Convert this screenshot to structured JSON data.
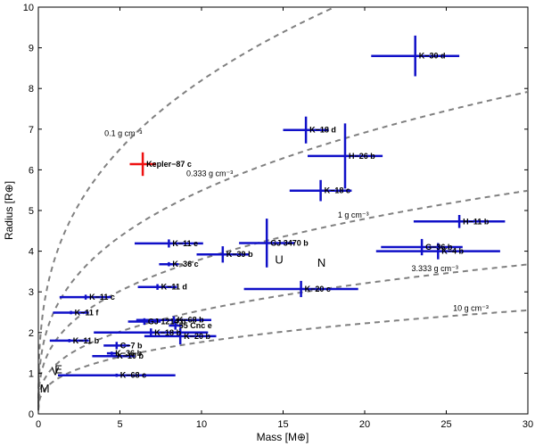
{
  "chart_data": {
    "type": "scatter",
    "subtype": "errorbar",
    "title": "",
    "xlabel": "Mass [M⊕]",
    "ylabel": "Radius [R⊕]",
    "xlim": [
      0,
      30
    ],
    "ylim": [
      0,
      10
    ],
    "xticks": [
      "0",
      "5",
      "10",
      "15",
      "20",
      "25",
      "30"
    ],
    "yticks": [
      "0",
      "1",
      "2",
      "3",
      "4",
      "5",
      "6",
      "7",
      "8",
      "9",
      "10"
    ],
    "grid": false,
    "colors": {
      "planet": "#1010c8",
      "highlight": "#ee1111",
      "curve": "#808080"
    },
    "density_curves": [
      {
        "label": "0.1 g cm⁻³",
        "density": 0.1
      },
      {
        "label": "0.333 g cm⁻³",
        "density": 0.333
      },
      {
        "label": "1 g cm⁻³",
        "density": 1.0
      },
      {
        "label": "3.333 g cm⁻³",
        "density": 3.333
      },
      {
        "label": "10 g cm⁻³",
        "density": 10.0
      }
    ],
    "points": [
      {
        "label": "K−30 d",
        "mass": 23.1,
        "radius": 8.8,
        "mass_err": [
          2.7,
          2.7
        ],
        "radius_err": [
          0.5,
          0.5
        ],
        "highlight": false
      },
      {
        "label": "K−18 d",
        "mass": 16.4,
        "radius": 6.98,
        "mass_err": [
          1.4,
          1.4
        ],
        "radius_err": [
          0.33,
          0.33
        ],
        "highlight": false
      },
      {
        "label": "H−26 b",
        "mass": 18.8,
        "radius": 6.34,
        "mass_err": [
          2.3,
          2.3
        ],
        "radius_err": [
          0.8,
          0.8
        ],
        "highlight": false
      },
      {
        "label": "Kepler−87 c",
        "mass": 6.4,
        "radius": 6.14,
        "mass_err": [
          0.8,
          0.8
        ],
        "radius_err": [
          0.29,
          0.29
        ],
        "highlight": true
      },
      {
        "label": "K−18 c",
        "mass": 17.3,
        "radius": 5.49,
        "mass_err": [
          1.9,
          1.9
        ],
        "radius_err": [
          0.26,
          0.26
        ],
        "highlight": false
      },
      {
        "label": "H−11 b",
        "mass": 25.8,
        "radius": 4.73,
        "mass_err": [
          2.8,
          2.8
        ],
        "radius_err": [
          0.16,
          0.16
        ],
        "highlight": false
      },
      {
        "label": "GJ 3470 b",
        "mass": 14.0,
        "radius": 4.2,
        "mass_err": [
          1.7,
          1.7
        ],
        "radius_err": [
          0.6,
          0.6
        ],
        "highlight": false
      },
      {
        "label": "K−11 e",
        "mass": 8.0,
        "radius": 4.19,
        "mass_err": [
          2.1,
          2.1
        ],
        "radius_err": [
          0.1,
          0.1
        ],
        "highlight": false
      },
      {
        "label": "G−36 b",
        "mass": 23.5,
        "radius": 4.1,
        "mass_err": [
          2.5,
          2.5
        ],
        "radius_err": [
          0.2,
          0.2
        ],
        "highlight": false
      },
      {
        "label": "K−4 b",
        "mass": 24.5,
        "radius": 4.0,
        "mass_err": [
          3.8,
          3.8
        ],
        "radius_err": [
          0.2,
          0.2
        ],
        "highlight": false
      },
      {
        "label": "K−39 b",
        "mass": 11.3,
        "radius": 3.92,
        "mass_err": [
          1.6,
          1.6
        ],
        "radius_err": [
          0.2,
          0.2
        ],
        "highlight": false
      },
      {
        "label": "K−36 c",
        "mass": 8.0,
        "radius": 3.68,
        "mass_err": [
          0.6,
          0.6
        ],
        "radius_err": [
          0.05,
          0.05
        ],
        "highlight": false
      },
      {
        "label": "K−11 d",
        "mass": 7.3,
        "radius": 3.12,
        "mass_err": [
          1.2,
          1.2
        ],
        "radius_err": [
          0.07,
          0.07
        ],
        "highlight": false
      },
      {
        "label": "K−20 c",
        "mass": 16.1,
        "radius": 3.07,
        "mass_err": [
          3.5,
          3.5
        ],
        "radius_err": [
          0.2,
          0.2
        ],
        "highlight": false
      },
      {
        "label": "K−11 c",
        "mass": 2.9,
        "radius": 2.87,
        "mass_err": [
          1.6,
          1.6
        ],
        "radius_err": [
          0.06,
          0.06
        ],
        "highlight": false
      },
      {
        "label": "K−11 f",
        "mass": 2.0,
        "radius": 2.49,
        "mass_err": [
          1.1,
          1.1
        ],
        "radius_err": [
          0.04,
          0.04
        ],
        "highlight": false
      },
      {
        "label": "GJ 1214 b",
        "mass": 6.5,
        "radius": 2.27,
        "mass_err": [
          1.0,
          1.0
        ],
        "radius_err": [
          0.08,
          0.08
        ],
        "highlight": false
      },
      {
        "label": "K−68 b",
        "mass": 8.3,
        "radius": 2.31,
        "mass_err": [
          2.3,
          2.3
        ],
        "radius_err": [
          0.09,
          0.09
        ],
        "highlight": false
      },
      {
        "label": "55 Cnc e",
        "mass": 8.4,
        "radius": 2.17,
        "mass_err": [
          0.4,
          0.4
        ],
        "radius_err": [
          0.1,
          0.1
        ],
        "highlight": false
      },
      {
        "label": "K−18 b",
        "mass": 6.9,
        "radius": 2.0,
        "mass_err": [
          3.5,
          3.5
        ],
        "radius_err": [
          0.1,
          0.1
        ],
        "highlight": false
      },
      {
        "label": "K−20 b",
        "mass": 8.7,
        "radius": 1.91,
        "mass_err": [
          2.2,
          2.2
        ],
        "radius_err": [
          0.2,
          0.2
        ],
        "highlight": false
      },
      {
        "label": "K−11 b",
        "mass": 1.9,
        "radius": 1.8,
        "mass_err": [
          1.2,
          1.2
        ],
        "radius_err": [
          0.04,
          0.04
        ],
        "highlight": false
      },
      {
        "label": "C−7 b",
        "mass": 4.8,
        "radius": 1.68,
        "mass_err": [
          0.8,
          0.8
        ],
        "radius_err": [
          0.09,
          0.09
        ],
        "highlight": false
      },
      {
        "label": "K−36 b",
        "mass": 4.5,
        "radius": 1.49,
        "mass_err": [
          0.3,
          0.3
        ],
        "radius_err": [
          0.04,
          0.04
        ],
        "highlight": false
      },
      {
        "label": "K−10 b",
        "mass": 4.6,
        "radius": 1.42,
        "mass_err": [
          1.3,
          1.3
        ],
        "radius_err": [
          0.03,
          0.03
        ],
        "highlight": false
      },
      {
        "label": "K−68 c",
        "mass": 4.8,
        "radius": 0.95,
        "mass_err": [
          3.6,
          3.6
        ],
        "radius_err": [
          0.04,
          0.04
        ],
        "highlight": false
      }
    ],
    "annotations": [
      {
        "text": "U",
        "mass": 14.5,
        "radius": 3.7
      },
      {
        "text": "N",
        "mass": 17.1,
        "radius": 3.62
      },
      {
        "text": "V",
        "mass": 0.8,
        "radius": 0.95
      },
      {
        "text": "E",
        "mass": 1.0,
        "radius": 1.0
      },
      {
        "text": "M",
        "mass": 0.1,
        "radius": 0.53
      }
    ]
  }
}
